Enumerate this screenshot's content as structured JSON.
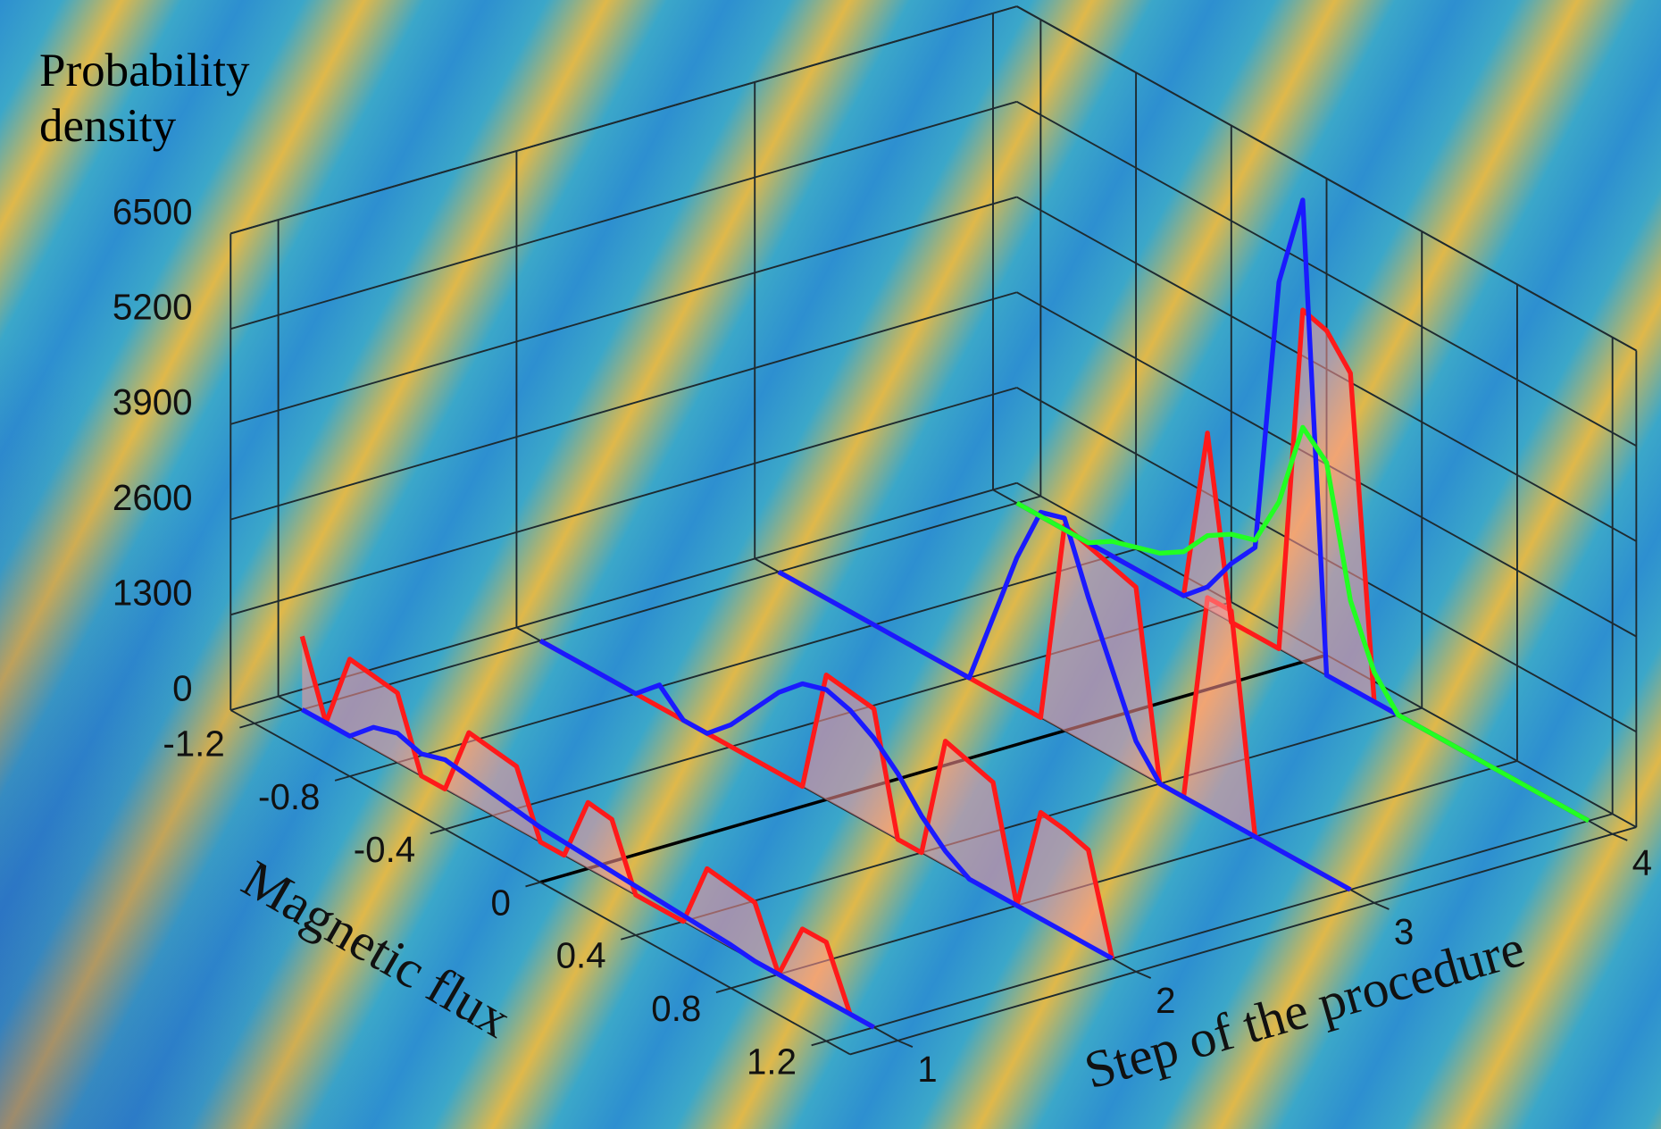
{
  "chart_data": {
    "type": "line3d",
    "xlabel": "Magnetic flux",
    "ylabel": "Step of the procedure",
    "zlabel": "Probability density",
    "x": [
      -1.2,
      -1.1,
      -1.0,
      -0.9,
      -0.8,
      -0.7,
      -0.6,
      -0.5,
      -0.4,
      -0.3,
      -0.2,
      -0.1,
      0,
      0.1,
      0.2,
      0.3,
      0.4,
      0.5,
      0.6,
      0.7,
      0.8,
      0.9,
      1.0,
      1.1,
      1.2
    ],
    "xlim": [
      -1.3,
      1.3
    ],
    "xticks": [
      -1.2,
      -0.8,
      -0.4,
      0,
      0.4,
      0.8,
      1.2
    ],
    "ylim": [
      0.8,
      4.1
    ],
    "yticks": [
      1,
      2,
      3,
      4
    ],
    "zlim": [
      0,
      6500
    ],
    "zticks": [
      0,
      1300,
      2600,
      3900,
      5200,
      6500
    ],
    "grid": true,
    "series": [
      {
        "step": 1,
        "color": "#ff1a1a",
        "values": [
          1000,
          0,
          1050,
          1000,
          950,
          0,
          0,
          950,
          900,
          850,
          0,
          0,
          900,
          850,
          0,
          0,
          0,
          900,
          850,
          800,
          0,
          800,
          800,
          0,
          0
        ]
      },
      {
        "step": 1,
        "color": "#1a1aff",
        "values": [
          0,
          0,
          0,
          300,
          400,
          300,
          400,
          350,
          300,
          250,
          200,
          180,
          160,
          140,
          120,
          100,
          80,
          60,
          40,
          0,
          0,
          0,
          0,
          0,
          0
        ]
      },
      {
        "step": 2,
        "color": "#ff1a1a",
        "values": [
          0,
          0,
          0,
          0,
          0,
          0,
          0,
          0,
          0,
          0,
          0,
          0,
          1700,
          1650,
          1600,
          0,
          0,
          1700,
          1600,
          1500,
          0,
          1450,
          1400,
          1300,
          0
        ]
      },
      {
        "step": 2,
        "color": "#1a1aff",
        "values": [
          0,
          0,
          0,
          0,
          0,
          300,
          0,
          0,
          300,
          700,
          1100,
          1400,
          1500,
          1400,
          1200,
          900,
          500,
          200,
          0,
          0,
          0,
          0,
          0,
          0,
          0
        ]
      },
      {
        "step": 3,
        "color": "#ff1a1a",
        "values": [
          0,
          0,
          0,
          0,
          0,
          0,
          0,
          0,
          0,
          0,
          0,
          0,
          2800,
          2700,
          2600,
          2500,
          0,
          0,
          2900,
          2900,
          0,
          0,
          0,
          0,
          0
        ]
      },
      {
        "step": 3,
        "color": "#1a1aff",
        "values": [
          0,
          0,
          0,
          0,
          0,
          0,
          0,
          0,
          0,
          1000,
          2000,
          2800,
          2900,
          2000,
          1200,
          400,
          0,
          0,
          0,
          0,
          0,
          0,
          0,
          0,
          0
        ]
      },
      {
        "step": 4,
        "color": "#ff1a1a",
        "values": [
          0,
          0,
          0,
          0,
          0,
          0,
          0,
          0,
          2400,
          0,
          0,
          0,
          4800,
          4700,
          4300,
          0,
          0,
          0,
          0,
          0,
          0,
          0,
          0,
          0,
          0
        ]
      },
      {
        "step": 4,
        "color": "#1a1aff",
        "values": [
          0,
          0,
          0,
          0,
          0,
          0,
          0,
          0,
          300,
          800,
          1200,
          5000,
          6300,
          0,
          0,
          0,
          0,
          0,
          0,
          0,
          0,
          0,
          0,
          0,
          0
        ]
      },
      {
        "step": 4,
        "color": "#22ff22",
        "values": [
          0,
          0,
          0,
          0,
          200,
          300,
          400,
          600,
          1000,
          1200,
          1300,
          2000,
          3200,
          2900,
          1200,
          400,
          0,
          0,
          0,
          0,
          0,
          0,
          0,
          0,
          0
        ]
      }
    ]
  }
}
